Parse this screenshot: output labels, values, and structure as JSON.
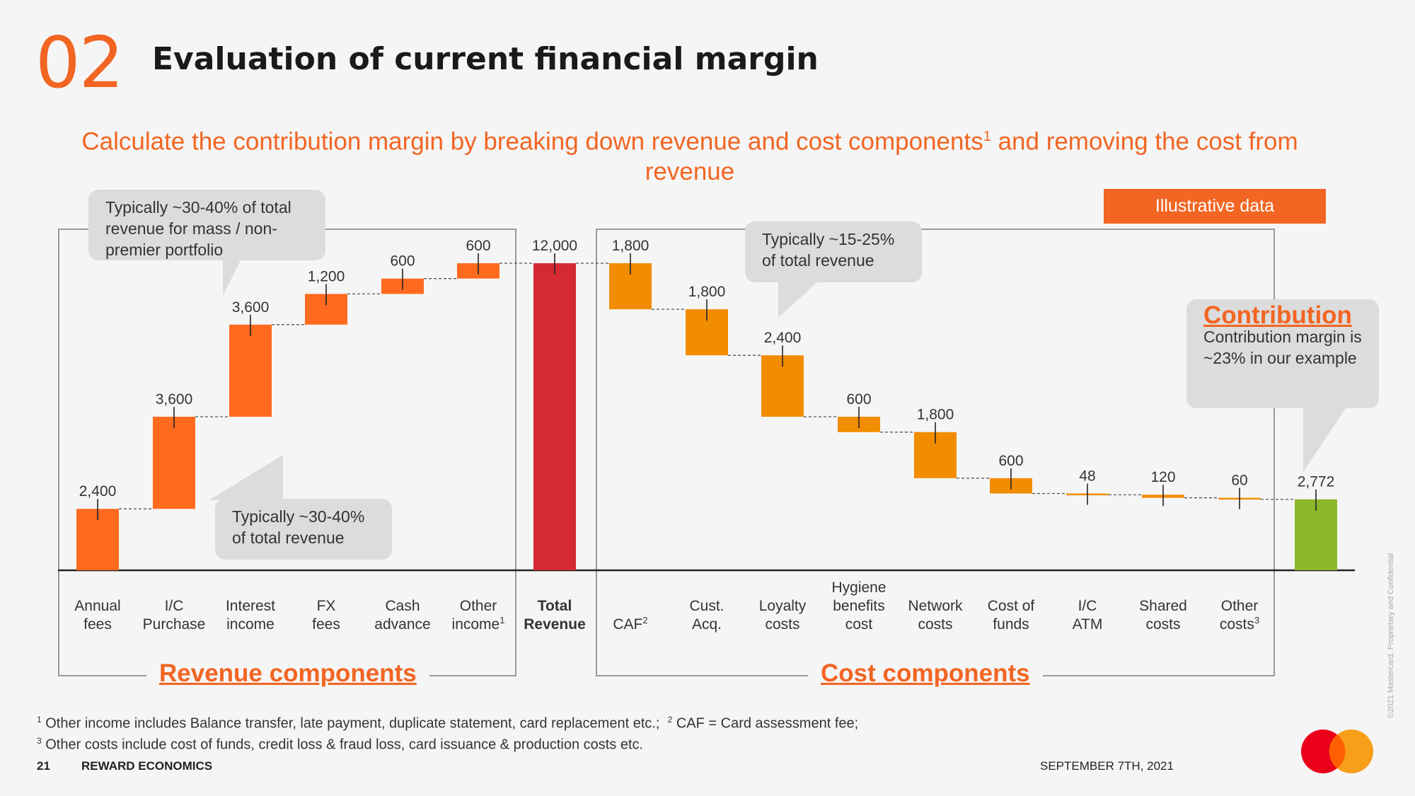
{
  "header": {
    "section_number": "02",
    "title": "Evaluation of current financial margin"
  },
  "subtitle": {
    "text": "Calculate the contribution margin by breaking down revenue and cost components",
    "sup": "1",
    "text_after": " and removing the cost from revenue"
  },
  "badge": "Illustrative data",
  "callouts": {
    "mass_portfolio": "Typically ~30-40% of total revenue for mass / non-premier portfolio",
    "interest_income": "Typically ~30-40% of total revenue",
    "loyalty": "Typically ~15-25% of total revenue",
    "contribution_title": "Contribution",
    "contribution_body": "Contribution margin is ~23% in our example"
  },
  "group_titles": {
    "revenue": "Revenue components",
    "cost": "Cost components"
  },
  "chart_data": {
    "type": "waterfall",
    "title": "",
    "categories": [
      {
        "line1": "Annual",
        "line2": "fees",
        "sup": ""
      },
      {
        "line1": "I/C",
        "line2": "Purchase",
        "sup": ""
      },
      {
        "line1": "Interest",
        "line2": "income",
        "sup": ""
      },
      {
        "line1": "FX",
        "line2": "fees",
        "sup": ""
      },
      {
        "line1": "Cash",
        "line2": "advance",
        "sup": ""
      },
      {
        "line1": "Other",
        "line2": "income",
        "sup": "1"
      },
      {
        "line1": "Total",
        "line2": "Revenue",
        "sup": "",
        "bold": true
      },
      {
        "line1": "",
        "line2": "CAF",
        "sup": "2"
      },
      {
        "line1": "Cust.",
        "line2": "Acq.",
        "sup": ""
      },
      {
        "line1": "Loyalty",
        "line2": "costs",
        "sup": ""
      },
      {
        "line0": "Hygiene",
        "line1": "benefits",
        "line2": "cost",
        "sup": ""
      },
      {
        "line1": "Network",
        "line2": "costs",
        "sup": ""
      },
      {
        "line1": "Cost of",
        "line2": "funds",
        "sup": ""
      },
      {
        "line1": "I/C",
        "line2": "ATM",
        "sup": ""
      },
      {
        "line1": "Shared",
        "line2": "costs",
        "sup": ""
      },
      {
        "line1": "Other",
        "line2": "costs",
        "sup": "3"
      },
      {
        "line1": "",
        "line2": "",
        "sup": ""
      }
    ],
    "values": [
      2400,
      3600,
      3600,
      1200,
      600,
      600,
      12000,
      1800,
      1800,
      2400,
      600,
      1800,
      600,
      48,
      120,
      60,
      2772
    ],
    "value_labels": [
      "2,400",
      "3,600",
      "3,600",
      "1,200",
      "600",
      "600",
      "12,000",
      "1,800",
      "1,800",
      "2,400",
      "600",
      "1,800",
      "600",
      "48",
      "120",
      "60",
      "2,772"
    ],
    "kinds": [
      "rev",
      "rev",
      "rev",
      "rev",
      "rev",
      "rev",
      "total",
      "cost",
      "cost",
      "cost",
      "cost",
      "cost",
      "cost",
      "cost",
      "cost",
      "cost",
      "result"
    ],
    "colors": {
      "rev": "#ff6a1f",
      "total": "#d42a33",
      "cost": "#f28c00",
      "result": "#8cb82b"
    },
    "ylim": [
      0,
      12000
    ]
  },
  "footnotes": {
    "n1_mark": "1",
    "n1": "Other income includes Balance transfer, late payment, duplicate statement, card replacement etc.;",
    "n2_mark": "2",
    "n2": "CAF = Card assessment fee;",
    "n3_mark": "3",
    "n3": "Other costs include cost of funds, credit loss & fraud loss, card issuance & production costs etc."
  },
  "footer": {
    "page": "21",
    "section": "REWARD ECONOMICS",
    "date": "SEPTEMBER 7TH, 2021",
    "copyright": "©2021 Mastercard. Proprietary and Confidential"
  },
  "icons": {
    "logo": "mastercard-logo",
    "logo_colors": [
      "#eb001b",
      "#f79e1b"
    ]
  }
}
